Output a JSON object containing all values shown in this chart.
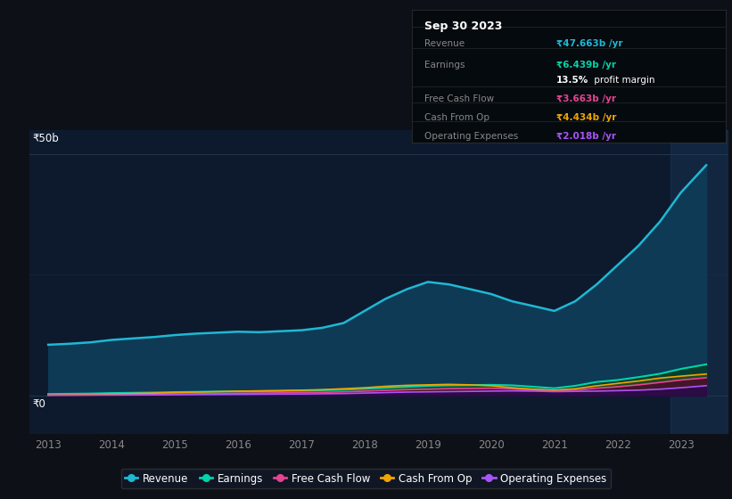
{
  "background_color": "#0d1117",
  "plot_bg_color": "#0d1a2e",
  "grid_color": "#253a50",
  "years": [
    2013,
    2013.33,
    2013.67,
    2014,
    2014.33,
    2014.67,
    2015,
    2015.33,
    2015.67,
    2016,
    2016.33,
    2016.67,
    2017,
    2017.33,
    2017.67,
    2018,
    2018.33,
    2018.67,
    2019,
    2019.33,
    2019.67,
    2020,
    2020.33,
    2020.67,
    2021,
    2021.33,
    2021.67,
    2022,
    2022.33,
    2022.67,
    2023,
    2023.4
  ],
  "revenue": [
    10.5,
    10.7,
    11.0,
    11.5,
    11.8,
    12.1,
    12.5,
    12.8,
    13.0,
    13.2,
    13.1,
    13.3,
    13.5,
    14.0,
    15.0,
    17.5,
    20.0,
    22.0,
    23.5,
    23.0,
    22.0,
    21.0,
    19.5,
    18.5,
    17.5,
    19.5,
    23.0,
    27.0,
    31.0,
    36.0,
    42.0,
    47.663
  ],
  "earnings": [
    0.3,
    0.35,
    0.4,
    0.5,
    0.55,
    0.6,
    0.7,
    0.75,
    0.8,
    0.85,
    0.9,
    0.95,
    1.0,
    1.1,
    1.2,
    1.4,
    1.6,
    1.8,
    2.0,
    2.1,
    2.15,
    2.2,
    2.1,
    1.8,
    1.5,
    2.0,
    2.8,
    3.2,
    3.8,
    4.5,
    5.5,
    6.439
  ],
  "free_cash_flow": [
    0.05,
    0.07,
    0.1,
    0.15,
    0.2,
    0.25,
    0.3,
    0.35,
    0.4,
    0.45,
    0.5,
    0.55,
    0.6,
    0.65,
    0.75,
    0.9,
    1.05,
    1.2,
    1.3,
    1.4,
    1.45,
    1.5,
    1.35,
    1.1,
    0.9,
    1.1,
    1.5,
    1.8,
    2.2,
    2.7,
    3.2,
    3.663
  ],
  "cash_from_op": [
    0.1,
    0.15,
    0.2,
    0.3,
    0.4,
    0.5,
    0.6,
    0.7,
    0.8,
    0.9,
    0.95,
    1.0,
    1.1,
    1.2,
    1.4,
    1.6,
    1.9,
    2.1,
    2.2,
    2.3,
    2.2,
    2.0,
    1.6,
    1.3,
    1.1,
    1.4,
    2.0,
    2.5,
    3.0,
    3.6,
    4.0,
    4.434
  ],
  "operating_exp": [
    0.05,
    0.06,
    0.07,
    0.08,
    0.1,
    0.12,
    0.15,
    0.18,
    0.2,
    0.22,
    0.25,
    0.28,
    0.3,
    0.35,
    0.4,
    0.5,
    0.6,
    0.7,
    0.75,
    0.8,
    0.85,
    0.9,
    0.95,
    0.9,
    0.8,
    0.85,
    0.9,
    1.0,
    1.1,
    1.3,
    1.6,
    2.018
  ],
  "revenue_color": "#1fb8d4",
  "earnings_color": "#00d4aa",
  "free_cash_flow_color": "#e84393",
  "cash_from_op_color": "#f0a500",
  "operating_exp_color": "#a855f7",
  "revenue_fill": "#0e3a55",
  "earnings_fill": "#073d30",
  "cash_from_op_fill": "#1a4a20",
  "free_cash_flow_fill": "#4a0d2a",
  "operating_exp_fill": "#2a0a4a",
  "ylim_min": -8,
  "ylim_max": 55,
  "xlim_min": 2012.7,
  "xlim_max": 2023.75,
  "highlight_x_start": 2022.83,
  "highlight_x_end": 2023.75,
  "ylabel_top": "₹50b",
  "ylabel_zero": "₹0",
  "xticks": [
    2013,
    2014,
    2015,
    2016,
    2017,
    2018,
    2019,
    2020,
    2021,
    2022,
    2023
  ],
  "xtick_labels": [
    "2013",
    "2014",
    "2015",
    "2016",
    "2017",
    "2018",
    "2019",
    "2020",
    "2021",
    "2022",
    "2023"
  ],
  "legend": [
    {
      "label": "Revenue",
      "color": "#1fb8d4"
    },
    {
      "label": "Earnings",
      "color": "#00d4aa"
    },
    {
      "label": "Free Cash Flow",
      "color": "#e84393"
    },
    {
      "label": "Cash From Op",
      "color": "#f0a500"
    },
    {
      "label": "Operating Expenses",
      "color": "#a855f7"
    }
  ],
  "ann_title": "Sep 30 2023",
  "ann_rows": [
    {
      "label": "Revenue",
      "value": "₹47.663b /yr",
      "value_color": "#1fb8d4",
      "divider_before": false
    },
    {
      "label": "Earnings",
      "value": "₹6.439b /yr",
      "value_color": "#00d4aa",
      "divider_before": true
    },
    {
      "label": "",
      "value": "",
      "value_color": "#ffffff",
      "divider_before": false,
      "margin_row": "13.5% profit margin"
    },
    {
      "label": "Free Cash Flow",
      "value": "₹3.663b /yr",
      "value_color": "#e84393",
      "divider_before": true
    },
    {
      "label": "Cash From Op",
      "value": "₹4.434b /yr",
      "value_color": "#f0a500",
      "divider_before": true
    },
    {
      "label": "Operating Expenses",
      "value": "₹2.018b /yr",
      "value_color": "#a855f7",
      "divider_before": true
    }
  ]
}
